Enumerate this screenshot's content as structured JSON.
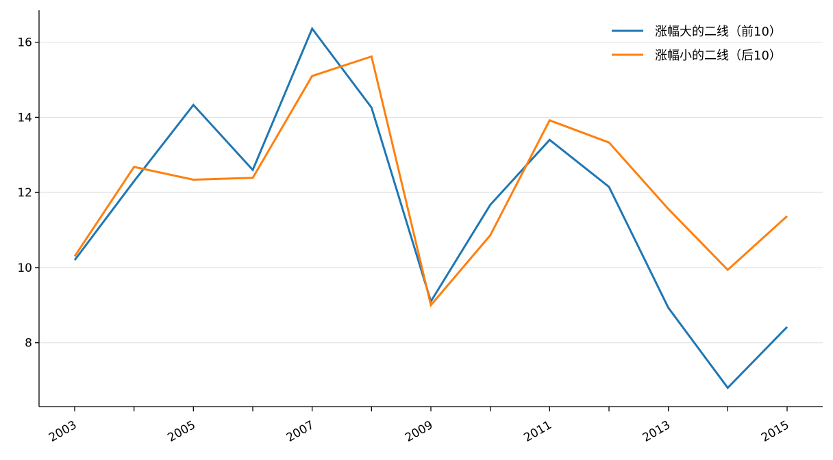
{
  "chart_data": {
    "type": "line",
    "title": "",
    "xlabel": "",
    "ylabel": "",
    "x": [
      2003,
      2004,
      2005,
      2006,
      2007,
      2008,
      2009,
      2010,
      2011,
      2012,
      2013,
      2014,
      2015
    ],
    "x_tick_labels": [
      "2003",
      "2005",
      "2007",
      "2009",
      "2011",
      "2013",
      "2015"
    ],
    "y_ticks": [
      8,
      10,
      12,
      14,
      16
    ],
    "xlim": [
      2002.4,
      2015.6
    ],
    "ylim": [
      6.3,
      16.85
    ],
    "grid": "horizontal",
    "legend_position": "top-right",
    "series": [
      {
        "name": "涨幅大的二线（前10）",
        "color": "#1f77b4",
        "values": [
          10.2,
          12.3,
          14.33,
          12.6,
          16.36,
          14.26,
          9.1,
          11.67,
          13.4,
          12.15,
          8.93,
          6.8,
          8.42
        ]
      },
      {
        "name": "涨幅小的二线（后10）",
        "color": "#ff7f0e",
        "values": [
          10.3,
          12.68,
          12.34,
          12.39,
          15.1,
          15.62,
          9.0,
          10.86,
          13.92,
          13.33,
          11.56,
          9.94,
          11.37
        ]
      }
    ]
  }
}
